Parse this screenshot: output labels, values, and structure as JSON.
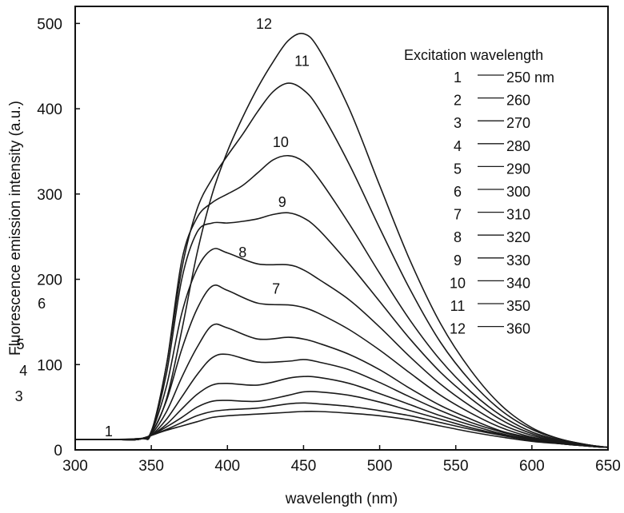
{
  "chart_data": {
    "type": "line",
    "title": "",
    "xlabel": "wavelength (nm)",
    "ylabel": "Fluorescence emission intensity (a.u.)",
    "xlim": [
      300,
      650
    ],
    "ylim": [
      0,
      520
    ],
    "xticks": [
      300,
      350,
      400,
      450,
      500,
      550,
      600,
      650
    ],
    "yticks": [
      0,
      100,
      200,
      300,
      400,
      500
    ],
    "xtick_labels": [
      "300",
      "350",
      "400",
      "450",
      "500",
      "550",
      "600",
      "650"
    ],
    "ytick_labels": [
      "0",
      "100",
      "200",
      "300",
      "400",
      "500"
    ],
    "grid": false,
    "legend": {
      "title": "Excitation wavelength",
      "placement": "top-right",
      "entries": [
        {
          "number": "1",
          "label": "250 nm"
        },
        {
          "number": "2",
          "label": "260"
        },
        {
          "number": "3",
          "label": "270"
        },
        {
          "number": "4",
          "label": "280"
        },
        {
          "number": "5",
          "label": "290"
        },
        {
          "number": "6",
          "label": "300"
        },
        {
          "number": "7",
          "label": "310"
        },
        {
          "number": "8",
          "label": "320"
        },
        {
          "number": "9",
          "label": "330"
        },
        {
          "number": "10",
          "label": "340"
        },
        {
          "number": "11",
          "label": "350"
        },
        {
          "number": "12",
          "label": "360"
        }
      ]
    },
    "series": [
      {
        "label": "1",
        "x": [
          300,
          330,
          340,
          345,
          350,
          360,
          370,
          380,
          390,
          400,
          420,
          440,
          450,
          460,
          480,
          500,
          520,
          540,
          560,
          580,
          600,
          620,
          640,
          650
        ],
        "y": [
          12,
          12,
          12,
          14,
          17,
          23,
          28,
          33,
          38,
          40,
          42,
          44,
          45,
          45,
          43,
          40,
          35,
          28,
          21,
          15,
          10,
          7,
          4,
          3
        ],
        "label_at": [
          322,
          16
        ]
      },
      {
        "label": "2",
        "x": [
          300,
          330,
          340,
          345,
          350,
          360,
          370,
          380,
          390,
          400,
          420,
          440,
          450,
          460,
          480,
          500,
          520,
          540,
          560,
          580,
          600,
          620,
          640,
          650
        ],
        "y": [
          12,
          12,
          12,
          14,
          17,
          24,
          32,
          40,
          45,
          47,
          49,
          54,
          55,
          54,
          51,
          46,
          40,
          32,
          24,
          17,
          11,
          7,
          4,
          3
        ],
        "label_at": null
      },
      {
        "label": "3",
        "x": [
          300,
          330,
          340,
          345,
          350,
          360,
          370,
          380,
          390,
          400,
          420,
          440,
          450,
          460,
          480,
          500,
          520,
          540,
          560,
          580,
          600,
          620,
          640,
          650
        ],
        "y": [
          12,
          12,
          12,
          14,
          17,
          27,
          38,
          50,
          57,
          58,
          57,
          64,
          68,
          68,
          64,
          56,
          46,
          36,
          26,
          18,
          12,
          7,
          4,
          3
        ],
        "label_at": [
          263,
          57
        ]
      },
      {
        "label": "4",
        "x": [
          300,
          330,
          340,
          345,
          350,
          360,
          370,
          380,
          390,
          400,
          420,
          440,
          450,
          460,
          480,
          500,
          520,
          540,
          560,
          580,
          600,
          620,
          640,
          650
        ],
        "y": [
          12,
          12,
          12,
          14,
          17,
          30,
          48,
          65,
          76,
          78,
          76,
          84,
          86,
          85,
          78,
          66,
          53,
          40,
          29,
          19,
          12,
          7,
          4,
          3
        ],
        "label_at": [
          266,
          87
        ]
      },
      {
        "label": "5",
        "x": [
          300,
          330,
          340,
          345,
          350,
          360,
          370,
          380,
          390,
          400,
          420,
          440,
          450,
          460,
          480,
          500,
          520,
          540,
          560,
          580,
          600,
          620,
          640,
          650
        ],
        "y": [
          12,
          12,
          12,
          14,
          17,
          36,
          62,
          88,
          108,
          112,
          103,
          104,
          106,
          103,
          94,
          79,
          62,
          46,
          32,
          21,
          13,
          8,
          4,
          3
        ],
        "label_at": [
          264,
          118
        ]
      },
      {
        "label": "6",
        "x": [
          300,
          330,
          340,
          345,
          350,
          360,
          370,
          380,
          390,
          400,
          420,
          440,
          450,
          460,
          480,
          500,
          520,
          540,
          560,
          580,
          600,
          620,
          640,
          650
        ],
        "y": [
          12,
          12,
          12,
          14,
          18,
          45,
          85,
          120,
          146,
          143,
          130,
          132,
          130,
          125,
          112,
          94,
          72,
          52,
          36,
          22,
          14,
          8,
          4,
          3
        ],
        "label_at": [
          278,
          166
        ]
      },
      {
        "label": "7",
        "x": [
          300,
          330,
          340,
          345,
          350,
          360,
          370,
          380,
          390,
          400,
          420,
          440,
          450,
          460,
          480,
          500,
          520,
          540,
          560,
          580,
          600,
          620,
          640,
          650
        ],
        "y": [
          12,
          12,
          12,
          14,
          19,
          58,
          118,
          165,
          192,
          187,
          172,
          170,
          167,
          160,
          141,
          117,
          90,
          64,
          43,
          26,
          15,
          9,
          4,
          3
        ],
        "label_at": [
          432,
          183
        ]
      },
      {
        "label": "8",
        "x": [
          300,
          330,
          340,
          345,
          350,
          360,
          370,
          380,
          390,
          400,
          420,
          440,
          450,
          460,
          480,
          500,
          520,
          540,
          560,
          580,
          600,
          620,
          640,
          650
        ],
        "y": [
          12,
          12,
          12,
          14,
          20,
          75,
          160,
          212,
          235,
          231,
          218,
          217,
          211,
          200,
          176,
          144,
          109,
          77,
          51,
          30,
          17,
          9,
          4,
          3
        ],
        "label_at": [
          410,
          226
        ]
      },
      {
        "label": "9",
        "x": [
          300,
          330,
          340,
          345,
          350,
          360,
          370,
          380,
          390,
          400,
          410,
          420,
          430,
          440,
          450,
          460,
          480,
          500,
          520,
          540,
          560,
          580,
          600,
          620,
          640,
          650
        ],
        "y": [
          12,
          12,
          12,
          14,
          20,
          90,
          200,
          255,
          266,
          266,
          268,
          271,
          276,
          278,
          272,
          258,
          218,
          174,
          130,
          91,
          60,
          35,
          19,
          10,
          5,
          3
        ],
        "label_at": [
          436,
          285
        ]
      },
      {
        "label": "10",
        "x": [
          300,
          330,
          340,
          345,
          350,
          360,
          370,
          380,
          390,
          400,
          410,
          420,
          430,
          440,
          450,
          460,
          480,
          500,
          520,
          540,
          560,
          580,
          600,
          620,
          640,
          650
        ],
        "y": [
          12,
          12,
          12,
          14,
          20,
          100,
          222,
          272,
          290,
          300,
          310,
          325,
          340,
          345,
          338,
          318,
          265,
          207,
          152,
          105,
          68,
          40,
          21,
          11,
          5,
          3
        ],
        "label_at": [
          435,
          355
        ]
      },
      {
        "label": "11",
        "x": [
          300,
          340,
          350,
          360,
          370,
          380,
          390,
          400,
          410,
          420,
          430,
          440,
          450,
          460,
          480,
          500,
          520,
          540,
          560,
          580,
          600,
          620,
          640,
          650
        ],
        "y": [
          12,
          13,
          22,
          100,
          212,
          282,
          318,
          345,
          370,
          397,
          420,
          430,
          422,
          400,
          335,
          260,
          188,
          126,
          80,
          46,
          24,
          12,
          5,
          3
        ],
        "label_at": [
          449,
          450
        ]
      },
      {
        "label": "12",
        "x": [
          300,
          340,
          350,
          360,
          370,
          380,
          390,
          400,
          410,
          420,
          430,
          440,
          450,
          460,
          480,
          500,
          520,
          540,
          560,
          580,
          600,
          620,
          640,
          650
        ],
        "y": [
          12,
          13,
          20,
          60,
          140,
          230,
          300,
          350,
          390,
          425,
          455,
          480,
          488,
          470,
          400,
          310,
          222,
          148,
          93,
          52,
          26,
          12,
          5,
          3
        ],
        "label_at": [
          424,
          494
        ]
      }
    ]
  }
}
